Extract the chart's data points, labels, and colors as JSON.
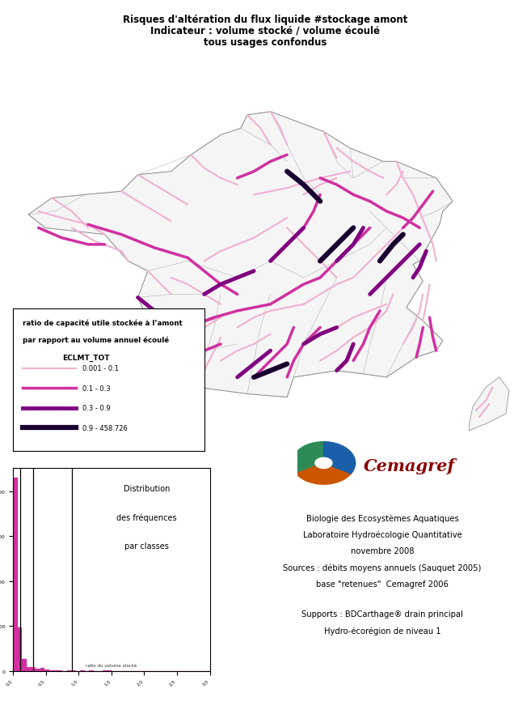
{
  "title_line1": "Risques d'altération du flux liquide #stockage amont",
  "title_line2": "Indicateur : volume stocké / volume écoulé",
  "title_line3": "tous usages confondus",
  "legend_title1": "ratio de capacité utile stockée à l’amont",
  "legend_title2": "par rapport au volume annuel écoulé",
  "legend_field": "ECLMT_TOT",
  "legend_entries": [
    {
      "label": "0.001 - 0.1",
      "color": "#f0b0d0",
      "lw": 1.5
    },
    {
      "label": "0.1 - 0.3",
      "color": "#d030a0",
      "lw": 2.5
    },
    {
      "label": "0.3 - 0.9",
      "color": "#800080",
      "lw": 3.5
    },
    {
      "label": "0.9 - 458.726",
      "color": "#1a0030",
      "lw": 4.5
    }
  ],
  "hist_title_line1": "Distribution",
  "hist_title_line2": "des fréquences",
  "hist_title_line3": "par classes",
  "hist_small_label": "ratio du volume stocké",
  "info_text1": "Biologie des Ecosystèmes Aquatiques",
  "info_text2": "Laboratoire Hydroécologie Quantitative",
  "info_text3": "novembre 2008",
  "info_text4": "Sources : débits moyens annuels (Sauquet 2005)",
  "info_text5": "base \"retenues\"  Cemagref 2006",
  "info_text6": "Supports : BDCarthage® drain principal",
  "info_text7": "Hydro-écorégion de niveau 1",
  "cemagref_text": "Cemagref",
  "background_color": "#ffffff"
}
